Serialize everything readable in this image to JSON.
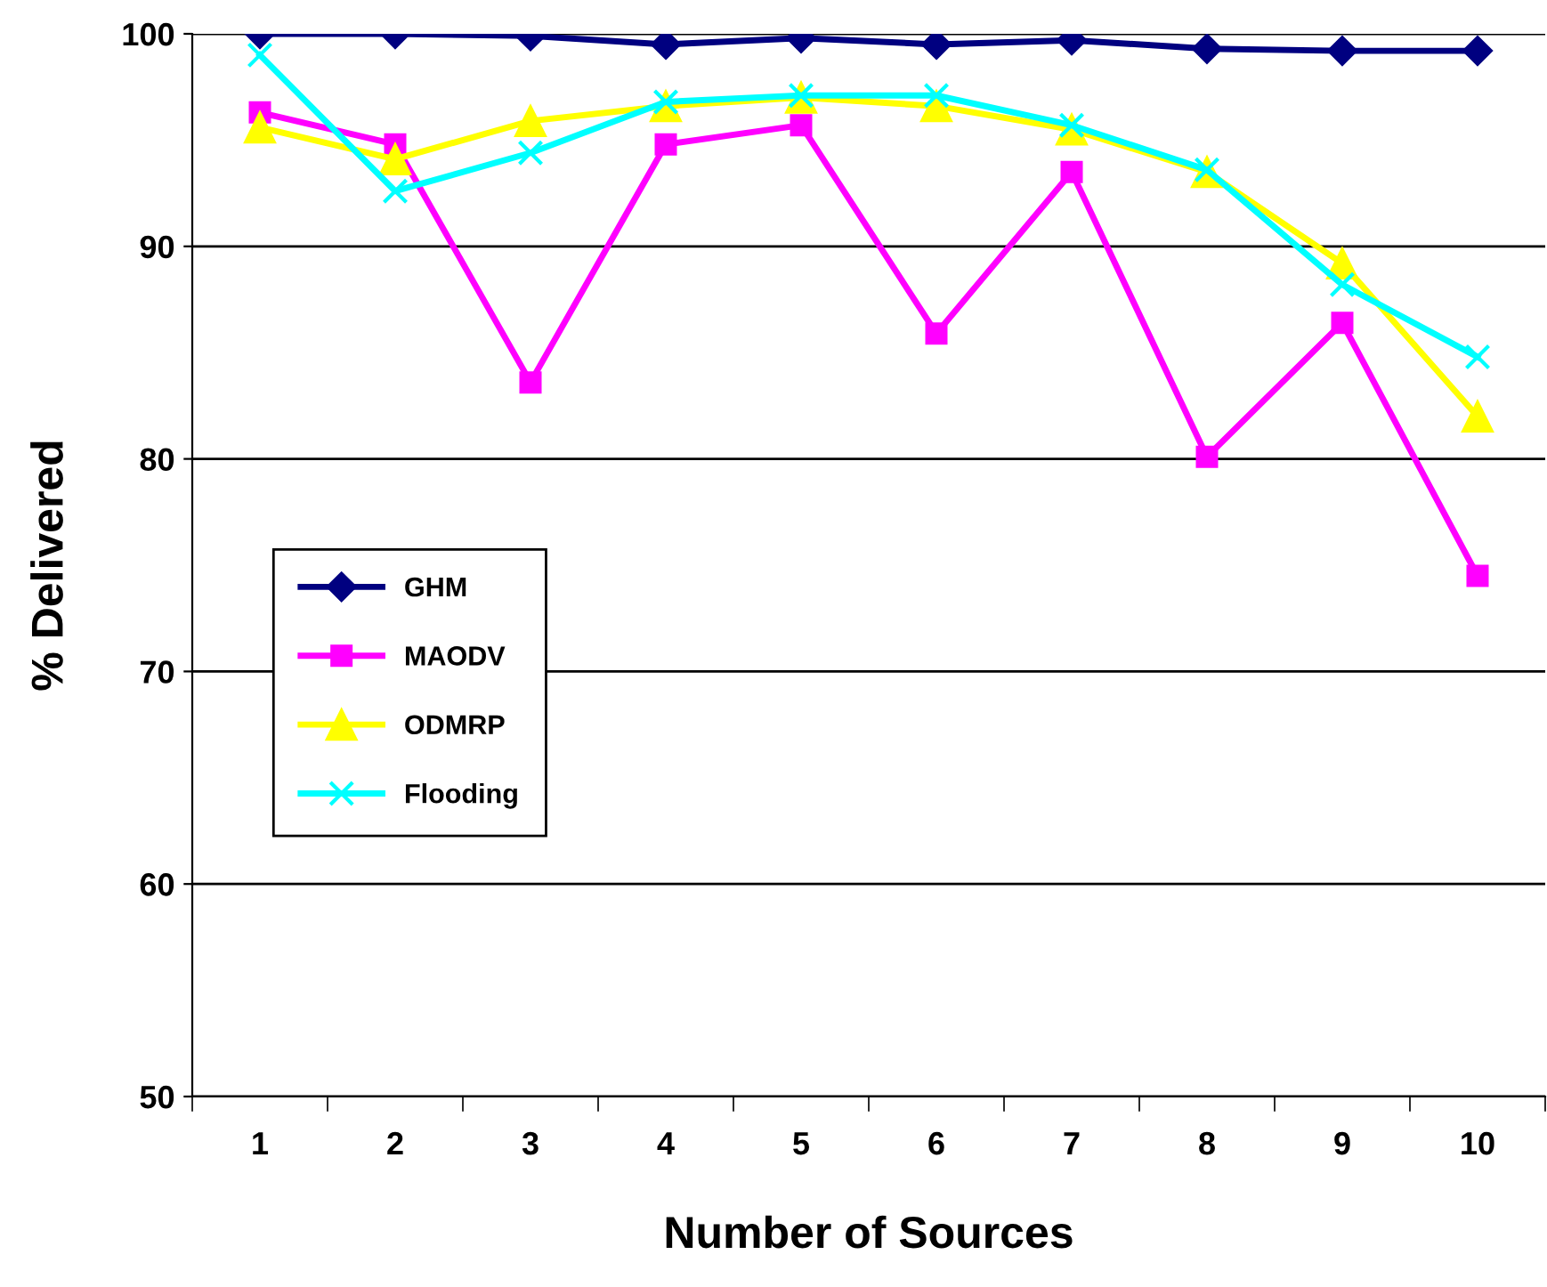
{
  "chart_data": {
    "type": "line",
    "xlabel": "Number of Sources",
    "ylabel": "% Delivered",
    "categories": [
      "1",
      "2",
      "3",
      "4",
      "5",
      "6",
      "7",
      "8",
      "9",
      "10"
    ],
    "series": [
      {
        "name": "GHM",
        "color": "#000080",
        "marker": "diamond",
        "values": [
          100,
          100,
          99.9,
          99.5,
          99.8,
          99.5,
          99.7,
          99.3,
          99.2,
          99.2
        ]
      },
      {
        "name": "MAODV",
        "color": "#ff00ff",
        "marker": "square",
        "values": [
          96.3,
          94.8,
          83.6,
          94.8,
          95.7,
          85.9,
          93.5,
          80.1,
          86.4,
          74.5
        ]
      },
      {
        "name": "ODMRP",
        "color": "#ffff00",
        "marker": "triangle",
        "values": [
          95.6,
          94.1,
          95.9,
          96.6,
          97.0,
          96.6,
          95.5,
          93.5,
          89.2,
          82.0
        ]
      },
      {
        "name": "Flooding",
        "color": "#00ffff",
        "marker": "cross",
        "values": [
          99.0,
          92.6,
          94.4,
          96.8,
          97.1,
          97.1,
          95.7,
          93.6,
          88.2,
          84.8
        ]
      }
    ],
    "ylim": [
      50,
      100
    ],
    "yticks": [
      50,
      60,
      70,
      80,
      90,
      100
    ],
    "grid": "y",
    "legend": "left",
    "line_style": "solid"
  }
}
